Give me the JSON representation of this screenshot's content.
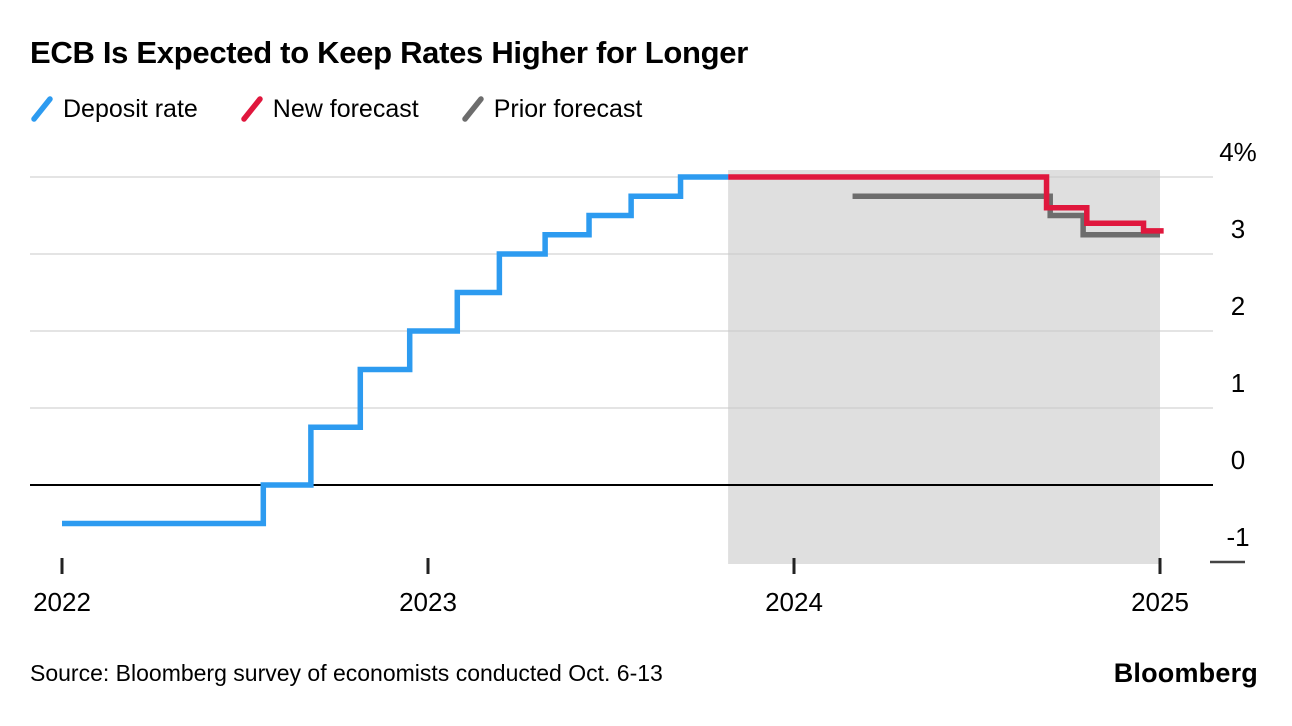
{
  "header": {
    "title": "ECB Is Expected to Keep Rates Higher for Longer"
  },
  "legend": {
    "items": [
      {
        "label": "Deposit rate",
        "color": "#2d9bf0"
      },
      {
        "label": "New forecast",
        "color": "#e0173d"
      },
      {
        "label": "Prior forecast",
        "color": "#6d6d6d"
      }
    ]
  },
  "chart_data": {
    "type": "line",
    "subtype": "step",
    "title": "ECB Is Expected to Keep Rates Higher for Longer",
    "xlabel": "",
    "ylabel": "",
    "unit": "%",
    "grid": "horizontal",
    "legend_position": "top-left",
    "xlim": [
      2021.9,
      2025.15
    ],
    "ylim": [
      -1.35,
      4.35
    ],
    "x_ticks": [
      {
        "value": 2022,
        "label": "2022"
      },
      {
        "value": 2023,
        "label": "2023"
      },
      {
        "value": 2024,
        "label": "2024"
      },
      {
        "value": 2025,
        "label": "2025"
      }
    ],
    "y_ticks": [
      {
        "value": 4,
        "label": "4%"
      },
      {
        "value": 3,
        "label": "3"
      },
      {
        "value": 2,
        "label": "2"
      },
      {
        "value": 1,
        "label": "1"
      },
      {
        "value": 0,
        "label": "0"
      },
      {
        "value": -1,
        "label": "-1"
      }
    ],
    "forecast_region": {
      "x_start": 2023.82,
      "x_end": 2025.0,
      "color": "#dfdfdf"
    },
    "series": [
      {
        "name": "Deposit rate",
        "color": "#2d9bf0",
        "steps": [
          [
            2022.0,
            -0.5
          ],
          [
            2022.55,
            0.0
          ],
          [
            2022.68,
            0.75
          ],
          [
            2022.815,
            1.5
          ],
          [
            2022.95,
            2.0
          ],
          [
            2023.08,
            2.5
          ],
          [
            2023.195,
            3.0
          ],
          [
            2023.32,
            3.25
          ],
          [
            2023.44,
            3.5
          ],
          [
            2023.555,
            3.75
          ],
          [
            2023.69,
            4.0
          ]
        ],
        "end_x": 2023.82
      },
      {
        "name": "New forecast",
        "color": "#e0173d",
        "steps": [
          [
            2023.82,
            4.0
          ],
          [
            2024.69,
            3.6
          ],
          [
            2024.8,
            3.4
          ],
          [
            2024.955,
            3.3
          ]
        ],
        "end_x": 2025.01
      },
      {
        "name": "Prior forecast",
        "color": "#6d6d6d",
        "steps": [
          [
            2024.16,
            3.75
          ],
          [
            2024.7,
            3.5
          ],
          [
            2024.79,
            3.25
          ]
        ],
        "end_x": 2025.0
      }
    ]
  },
  "footer": {
    "source": "Source: Bloomberg survey of economists conducted Oct. 6-13",
    "brand": "Bloomberg"
  }
}
